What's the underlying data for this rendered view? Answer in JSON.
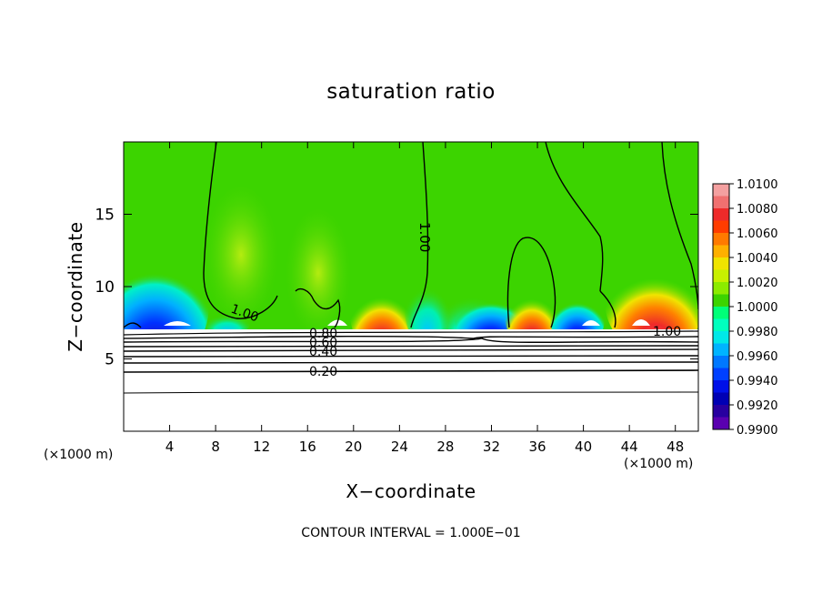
{
  "chart_data": {
    "type": "heatmap",
    "title": "saturation ratio",
    "xlabel": "X−coordinate",
    "ylabel": "Z−coordinate",
    "x_unit_label": "(×1000 m)",
    "xlim": [
      0,
      50
    ],
    "ylim": [
      0,
      20
    ],
    "x_ticks": [
      4,
      8,
      12,
      16,
      20,
      24,
      28,
      32,
      36,
      40,
      44,
      48
    ],
    "y_ticks": [
      5,
      10,
      15
    ],
    "colorbar": {
      "ticks": [
        "1.0100",
        "1.0080",
        "1.0060",
        "1.0040",
        "1.0020",
        "1.0000",
        "0.9980",
        "0.9960",
        "0.9940",
        "0.9920",
        "0.9900"
      ],
      "colors": [
        "#f4a0a0",
        "#f07070",
        "#ee2a2a",
        "#ff3c00",
        "#ff7a00",
        "#ffb000",
        "#f0e400",
        "#c8f000",
        "#8cec00",
        "#3cd400",
        "#00ff78",
        "#00ffbe",
        "#00e8e8",
        "#00b4ff",
        "#0078ff",
        "#0040ff",
        "#0010e8",
        "#0000b4",
        "#2800a0",
        "#5a00b0"
      ]
    },
    "contour_labels": [
      "1.00",
      "1.00",
      "1.00",
      "0.80",
      "0.60",
      "0.40",
      "0.20"
    ],
    "annotation": "CONTOUR INTERVAL = 1.000E−01",
    "grid": false
  }
}
